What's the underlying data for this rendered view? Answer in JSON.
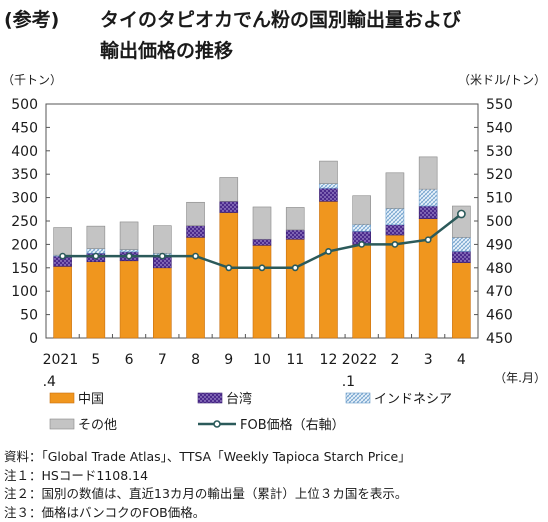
{
  "title": {
    "tag": "(参考)",
    "line1": "タイのタピオカでん粉の国別輸出量および",
    "line2": "輸出価格の推移"
  },
  "chart_data": {
    "type": "bar",
    "stacked": true,
    "categories": [
      "2021\n.4",
      "5",
      "6",
      "7",
      "8",
      "9",
      "10",
      "11",
      "12",
      "2022\n.1",
      "2",
      "3",
      "4"
    ],
    "y_left_unit": "（千トン）",
    "y_right_unit": "（米ドル/トン）",
    "x_unit": "（年.月）",
    "ylim_left": [
      0,
      500
    ],
    "ylim_right": [
      450,
      550
    ],
    "left_ticks": [
      0,
      50,
      100,
      150,
      200,
      250,
      300,
      350,
      400,
      450,
      500
    ],
    "right_ticks": [
      450,
      460,
      470,
      480,
      490,
      500,
      510,
      520,
      530,
      540,
      550
    ],
    "series": [
      {
        "name": "中国",
        "color": "#f0961e",
        "values": [
          153,
          163,
          165,
          150,
          215,
          268,
          198,
          211,
          292,
          200,
          220,
          255,
          161
        ]
      },
      {
        "name": "台湾",
        "color": "#5a3a9a",
        "values": [
          22,
          18,
          19,
          24,
          25,
          24,
          13,
          20,
          28,
          28,
          22,
          27,
          24
        ]
      },
      {
        "name": "インドネシア",
        "color": "#cfe3f4",
        "values": [
          2,
          10,
          5,
          7,
          0,
          0,
          0,
          0,
          10,
          15,
          35,
          36,
          30
        ]
      },
      {
        "name": "その他",
        "color": "#c4c4c4",
        "values": [
          59,
          48,
          59,
          59,
          50,
          51,
          69,
          48,
          48,
          61,
          76,
          69,
          67
        ]
      }
    ],
    "line_series": {
      "name": "FOB価格（右軸）",
      "axis": "right",
      "color": "#2b5a5a",
      "values": [
        485,
        485,
        485,
        485,
        485,
        480,
        480,
        480,
        487,
        490,
        490,
        492,
        503
      ]
    },
    "grid": false,
    "legend": "bottom"
  },
  "notes": [
    "資料：「Global Trade Atlas」、TTSA「Weekly Tapioca Starch Price」",
    "注１：HSコード1108.14",
    "注２：国別の数値は、直近13カ月の輸出量（累計）上位３カ国を表示。",
    "注３：価格はバンコクのFOB価格。"
  ]
}
